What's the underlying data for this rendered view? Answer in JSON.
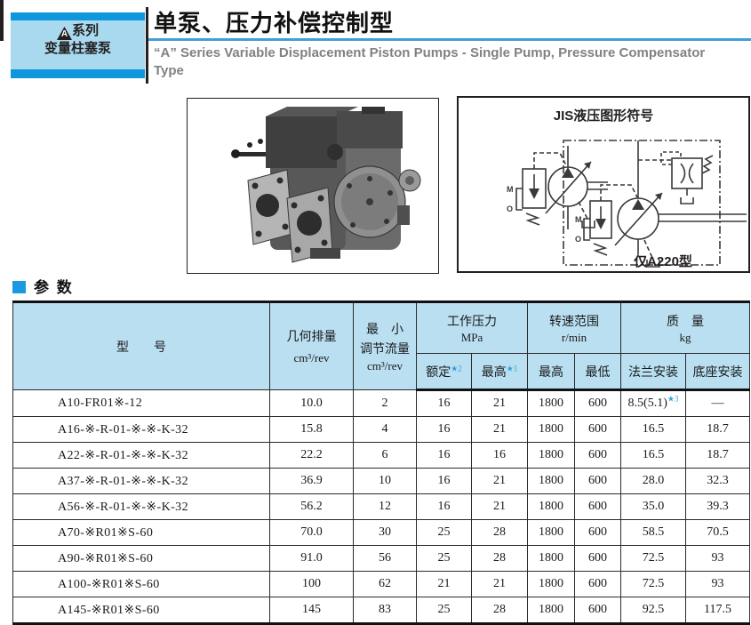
{
  "header": {
    "series_logo_letter": "A",
    "series_line1": "系列",
    "series_line2": "变量柱塞泵",
    "title_zh": "单泵、压力补偿控制型",
    "subtitle_en": "“A” Series Variable Displacement Piston Pumps - Single Pump, Pressure Compensator Type"
  },
  "jis": {
    "title": "JIS液压图形符号",
    "caption": "仅A220型",
    "m_label": "M",
    "o_label": "O"
  },
  "section": {
    "title": "参 数"
  },
  "table": {
    "col_model": "型　　号",
    "col_displacement": "几何排量",
    "col_displacement_unit": "cm³/rev",
    "col_minflow_l1": "最　小",
    "col_minflow_l2": "调节流量",
    "col_minflow_unit": "cm³/rev",
    "grp_pressure": "工作压力",
    "grp_pressure_unit": "MPa",
    "sub_rated": "额定",
    "sub_rated_note": "★2",
    "sub_max": "最高",
    "sub_max_note": "★1",
    "grp_speed": "转速范围",
    "grp_speed_unit": "r/min",
    "sub_speed_max": "最高",
    "sub_speed_min": "最低",
    "grp_mass": "质　量",
    "grp_mass_unit": "kg",
    "sub_flange": "法兰安装",
    "sub_foot": "底座安装",
    "rows": [
      [
        "A10-FR01※-12",
        "10.0",
        "2",
        "16",
        "21",
        "1800",
        "600",
        "8.5(5.1)★3",
        "—"
      ],
      [
        "A16-※-R-01-※-※-K-32",
        "15.8",
        "4",
        "16",
        "21",
        "1800",
        "600",
        "16.5",
        "18.7"
      ],
      [
        "A22-※-R-01-※-※-K-32",
        "22.2",
        "6",
        "16",
        "16",
        "1800",
        "600",
        "16.5",
        "18.7"
      ],
      [
        "A37-※-R-01-※-※-K-32",
        "36.9",
        "10",
        "16",
        "21",
        "1800",
        "600",
        "28.0",
        "32.3"
      ],
      [
        "A56-※-R-01-※-※-K-32",
        "56.2",
        "12",
        "16",
        "21",
        "1800",
        "600",
        "35.0",
        "39.3"
      ],
      [
        "A70-※R01※S-60",
        "70.0",
        "30",
        "25",
        "28",
        "1800",
        "600",
        "58.5",
        "70.5"
      ],
      [
        "A90-※R01※S-60",
        "91.0",
        "56",
        "25",
        "28",
        "1800",
        "600",
        "72.5",
        "93"
      ],
      [
        "A100-※R01※S-60",
        "100",
        "62",
        "21",
        "21",
        "1800",
        "600",
        "72.5",
        "93"
      ],
      [
        "A145-※R01※S-60",
        "145",
        "83",
        "25",
        "28",
        "1800",
        "600",
        "92.5",
        "117.5"
      ]
    ]
  }
}
